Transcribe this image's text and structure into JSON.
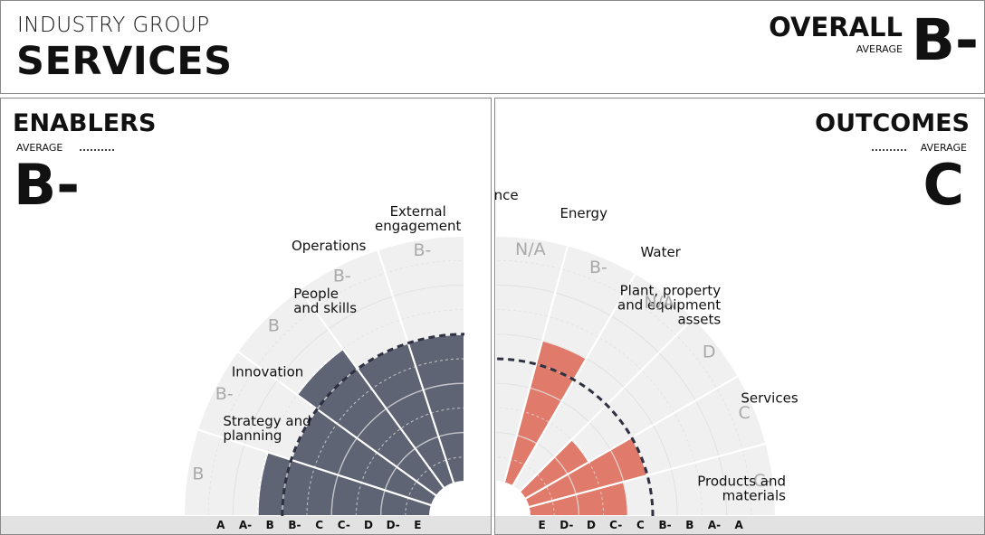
{
  "header": {
    "group_label": "INDUSTRY GROUP",
    "group_name": "SERVICES",
    "overall_label": "OVERALL",
    "overall_sub": "AVERAGE",
    "overall_grade": "B-"
  },
  "enablers": {
    "title": "ENABLERS",
    "avg_label": "AVERAGE",
    "avg_grade": "B-"
  },
  "outcomes": {
    "title": "OUTCOMES",
    "avg_label": "AVERAGE",
    "avg_grade": "C"
  },
  "colors": {
    "enablers_fill": "#5f6474",
    "outcomes_fill": "#e07a6a",
    "background_wedge": "#f0f0f0",
    "ring": "#cfcfcf",
    "average_line": "#2f3142",
    "scale_bar": "#e2e2e2"
  },
  "chart_data": [
    {
      "type": "polar-bar",
      "title": "ENABLERS",
      "grade_scale": [
        "A",
        "A-",
        "B",
        "B-",
        "C",
        "C-",
        "D",
        "D-",
        "E"
      ],
      "average_grade": "B-",
      "series": [
        {
          "name": "Strategy and planning",
          "grade": "B"
        },
        {
          "name": "Innovation",
          "grade": "B-"
        },
        {
          "name": "People and skills",
          "grade": "B"
        },
        {
          "name": "Operations",
          "grade": "B-"
        },
        {
          "name": "External engagement",
          "grade": "B-"
        }
      ],
      "category_labels": [
        [
          "Strategy and",
          "planning"
        ],
        [
          "Innovation"
        ],
        [
          "People",
          "and skills"
        ],
        [
          "Operations"
        ],
        [
          "External",
          "engagement"
        ]
      ]
    },
    {
      "type": "polar-bar",
      "title": "OUTCOMES",
      "grade_scale": [
        "E",
        "D-",
        "D",
        "C-",
        "C",
        "B-",
        "B",
        "A-",
        "A"
      ],
      "average_grade": "C",
      "series": [
        {
          "name": "Products and materials",
          "grade": "C-"
        },
        {
          "name": "Services",
          "grade": "C"
        },
        {
          "name": "Plant, property and equipment assets",
          "grade": "D"
        },
        {
          "name": "Water",
          "grade": "N/A"
        },
        {
          "name": "Energy",
          "grade": "B-"
        },
        {
          "name": "Finance",
          "grade": "N/A"
        }
      ],
      "category_labels": [
        [
          "Products and",
          "materials"
        ],
        [
          "Services"
        ],
        [
          "Plant, property",
          "and equipment",
          "assets"
        ],
        [
          "Water"
        ],
        [
          "Energy"
        ],
        [
          "Finance"
        ]
      ]
    }
  ]
}
